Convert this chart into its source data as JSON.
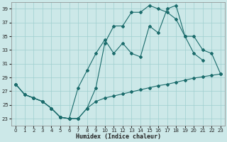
{
  "xlabel": "Humidex (Indice chaleur)",
  "bg_color": "#cce8e8",
  "grid_color": "#9fcfcf",
  "line_color": "#1a6b6b",
  "xlim": [
    -0.5,
    23.5
  ],
  "ylim": [
    22.0,
    40.0
  ],
  "yticks": [
    23,
    25,
    27,
    29,
    31,
    33,
    35,
    37,
    39
  ],
  "xticks": [
    0,
    1,
    2,
    3,
    4,
    5,
    6,
    7,
    8,
    9,
    10,
    11,
    12,
    13,
    14,
    15,
    16,
    17,
    18,
    19,
    20,
    21,
    22,
    23
  ],
  "line1_x": [
    0,
    1,
    2,
    3,
    4,
    5,
    6,
    7,
    8,
    9,
    10,
    11,
    12,
    13,
    14,
    15,
    16,
    17,
    18,
    19,
    20,
    21,
    22
  ],
  "line1_y": [
    28.0,
    26.5,
    26.0,
    25.5,
    24.5,
    23.2,
    23.0,
    23.0,
    24.5,
    27.5,
    34.0,
    36.5,
    36.5,
    38.5,
    38.5,
    39.5,
    39.0,
    38.5,
    37.5,
    35.0,
    32.5,
    31.5,
    null
  ],
  "line2_x": [
    0,
    1,
    2,
    3,
    4,
    5,
    6,
    7,
    8,
    9,
    10,
    11,
    12,
    13,
    14,
    15,
    16,
    17,
    18,
    19,
    20,
    21,
    22,
    23
  ],
  "line2_y": [
    28.0,
    26.5,
    26.0,
    25.5,
    24.5,
    23.2,
    23.0,
    27.5,
    30.0,
    32.5,
    34.5,
    32.5,
    34.0,
    32.5,
    32.0,
    36.5,
    35.5,
    39.0,
    39.5,
    35.0,
    35.0,
    33.0,
    32.5,
    29.5
  ],
  "line3_x": [
    0,
    1,
    2,
    3,
    4,
    5,
    6,
    7,
    8,
    9,
    10,
    11,
    12,
    13,
    14,
    15,
    16,
    17,
    18,
    19,
    20,
    21,
    22,
    23
  ],
  "line3_y": [
    28.0,
    26.5,
    26.0,
    25.5,
    24.5,
    23.2,
    23.0,
    23.0,
    24.5,
    25.5,
    26.0,
    26.3,
    26.6,
    26.9,
    27.2,
    27.5,
    27.8,
    28.0,
    28.3,
    28.6,
    28.9,
    29.1,
    29.3,
    29.5
  ]
}
